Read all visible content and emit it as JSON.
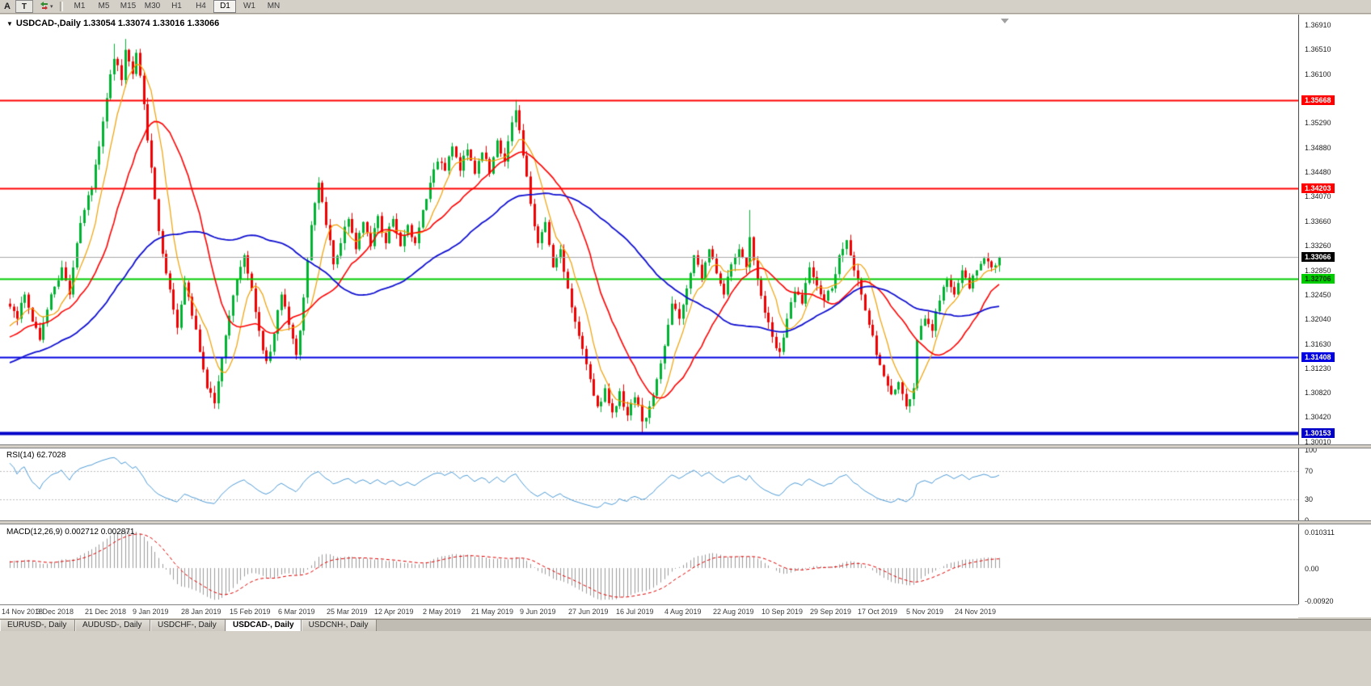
{
  "toolbar": {
    "pointer_label": "A",
    "text_tool_label": "T",
    "timeframes": [
      "M1",
      "M5",
      "M15",
      "M30",
      "H1",
      "H4",
      "D1",
      "W1",
      "MN"
    ],
    "active_timeframe": "D1"
  },
  "chart_data": {
    "type": "candlestick",
    "symbol": "USDCAD",
    "period": "Daily",
    "title_display": "USDCAD-,Daily 1.33054 1.33074 1.33016 1.33066",
    "ohlc": {
      "open": 1.33054,
      "high": 1.33074,
      "low": 1.33016,
      "close": 1.33066
    },
    "y_axis_ticks": [
      "1.36910",
      "1.36510",
      "1.36100",
      "1.35690",
      "1.35290",
      "1.34880",
      "1.34480",
      "1.34070",
      "1.33660",
      "1.33260",
      "1.32850",
      "1.32450",
      "1.32040",
      "1.31630",
      "1.31230",
      "1.30820",
      "1.30420",
      "1.30010"
    ],
    "x_labels": [
      "14 Nov 2018",
      "3 Dec 2018",
      "21 Dec 2018",
      "9 Jan 2019",
      "28 Jan 2019",
      "15 Feb 2019",
      "6 Mar 2019",
      "25 Mar 2019",
      "12 Apr 2019",
      "2 May 2019",
      "21 May 2019",
      "9 Jun 2019",
      "27 Jun 2019",
      "16 Jul 2019",
      "4 Aug 2019",
      "22 Aug 2019",
      "10 Sep 2019",
      "29 Sep 2019",
      "17 Oct 2019",
      "5 Nov 2019",
      "24 Nov 2019"
    ],
    "bars_per_label": 13,
    "total_bars": 267,
    "close_waypoints": [
      [
        0,
        1.3225
      ],
      [
        2,
        1.3205
      ],
      [
        4,
        1.3245
      ],
      [
        6,
        1.32
      ],
      [
        8,
        1.317
      ],
      [
        10,
        1.322
      ],
      [
        12,
        1.3258
      ],
      [
        14,
        1.329
      ],
      [
        16,
        1.3245
      ],
      [
        18,
        1.333
      ],
      [
        20,
        1.3385
      ],
      [
        22,
        1.342
      ],
      [
        24,
        1.349
      ],
      [
        26,
        1.357
      ],
      [
        28,
        1.3635
      ],
      [
        30,
        1.36
      ],
      [
        31,
        1.365
      ],
      [
        33,
        1.361
      ],
      [
        34,
        1.3645
      ],
      [
        36,
        1.356
      ],
      [
        38,
        1.3455
      ],
      [
        40,
        1.335
      ],
      [
        42,
        1.328
      ],
      [
        44,
        1.322
      ],
      [
        45,
        1.319
      ],
      [
        47,
        1.3265
      ],
      [
        49,
        1.321
      ],
      [
        51,
        1.315
      ],
      [
        53,
        1.309
      ],
      [
        55,
        1.3065
      ],
      [
        57,
        1.314
      ],
      [
        59,
        1.321
      ],
      [
        61,
        1.327
      ],
      [
        63,
        1.331
      ],
      [
        65,
        1.3255
      ],
      [
        67,
        1.3185
      ],
      [
        69,
        1.3135
      ],
      [
        71,
        1.318
      ],
      [
        73,
        1.3245
      ],
      [
        75,
        1.3195
      ],
      [
        77,
        1.3145
      ],
      [
        79,
        1.324
      ],
      [
        81,
        1.336
      ],
      [
        83,
        1.343
      ],
      [
        85,
        1.336
      ],
      [
        87,
        1.3295
      ],
      [
        89,
        1.333
      ],
      [
        91,
        1.337
      ],
      [
        93,
        1.332
      ],
      [
        95,
        1.3365
      ],
      [
        97,
        1.3325
      ],
      [
        99,
        1.3375
      ],
      [
        101,
        1.333
      ],
      [
        103,
        1.337
      ],
      [
        105,
        1.3325
      ],
      [
        107,
        1.336
      ],
      [
        109,
        1.333
      ],
      [
        111,
        1.3385
      ],
      [
        113,
        1.343
      ],
      [
        115,
        1.3465
      ],
      [
        117,
        1.345
      ],
      [
        119,
        1.349
      ],
      [
        121,
        1.345
      ],
      [
        123,
        1.3485
      ],
      [
        125,
        1.3445
      ],
      [
        127,
        1.348
      ],
      [
        129,
        1.3445
      ],
      [
        131,
        1.35
      ],
      [
        133,
        1.3465
      ],
      [
        135,
        1.353
      ],
      [
        136,
        1.355
      ],
      [
        138,
        1.3475
      ],
      [
        140,
        1.3395
      ],
      [
        142,
        1.333
      ],
      [
        144,
        1.3365
      ],
      [
        146,
        1.329
      ],
      [
        148,
        1.332
      ],
      [
        150,
        1.3255
      ],
      [
        152,
        1.32
      ],
      [
        154,
        1.3155
      ],
      [
        156,
        1.3105
      ],
      [
        158,
        1.306
      ],
      [
        160,
        1.309
      ],
      [
        162,
        1.305
      ],
      [
        164,
        1.3085
      ],
      [
        166,
        1.3045
      ],
      [
        168,
        1.3075
      ],
      [
        170,
        1.3035
      ],
      [
        172,
        1.306
      ],
      [
        174,
        1.3105
      ],
      [
        176,
        1.316
      ],
      [
        178,
        1.323
      ],
      [
        180,
        1.3205
      ],
      [
        182,
        1.3255
      ],
      [
        184,
        1.331
      ],
      [
        186,
        1.327
      ],
      [
        188,
        1.332
      ],
      [
        190,
        1.328
      ],
      [
        192,
        1.3245
      ],
      [
        194,
        1.3295
      ],
      [
        196,
        1.332
      ],
      [
        198,
        1.329
      ],
      [
        199,
        1.334
      ],
      [
        201,
        1.327
      ],
      [
        203,
        1.3215
      ],
      [
        205,
        1.3175
      ],
      [
        207,
        1.315
      ],
      [
        209,
        1.3205
      ],
      [
        211,
        1.325
      ],
      [
        213,
        1.323
      ],
      [
        215,
        1.329
      ],
      [
        217,
        1.326
      ],
      [
        219,
        1.3235
      ],
      [
        221,
        1.3255
      ],
      [
        223,
        1.331
      ],
      [
        225,
        1.3335
      ],
      [
        227,
        1.3285
      ],
      [
        229,
        1.3245
      ],
      [
        231,
        1.3195
      ],
      [
        233,
        1.3145
      ],
      [
        235,
        1.311
      ],
      [
        237,
        1.308
      ],
      [
        239,
        1.31
      ],
      [
        241,
        1.306
      ],
      [
        243,
        1.309
      ],
      [
        244,
        1.317
      ],
      [
        246,
        1.3205
      ],
      [
        248,
        1.3185
      ],
      [
        250,
        1.3235
      ],
      [
        252,
        1.327
      ],
      [
        254,
        1.3245
      ],
      [
        256,
        1.3285
      ],
      [
        258,
        1.3255
      ],
      [
        260,
        1.3285
      ],
      [
        262,
        1.3305
      ],
      [
        264,
        1.329
      ],
      [
        266,
        1.33066
      ]
    ],
    "wick_overrides": [
      {
        "i": 28,
        "high": 1.366
      },
      {
        "i": 31,
        "high": 1.3668
      },
      {
        "i": 136,
        "high": 1.3567
      },
      {
        "i": 170,
        "low": 1.3016
      },
      {
        "i": 199,
        "high": 1.3385
      },
      {
        "i": 207,
        "low": 1.3141
      }
    ],
    "colors": {
      "up": "#00B232",
      "down": "#F00000",
      "background": "#FFFFFF",
      "current_price_line": "#A8A8A8"
    },
    "horizontal_lines": [
      {
        "price": 1.35668,
        "label": "1.35668",
        "color": "#FF0000",
        "width": 2,
        "text_color": "#FFFFFF"
      },
      {
        "price": 1.34203,
        "label": "1.34203",
        "color": "#FF0000",
        "width": 2,
        "text_color": "#FFFFFF"
      },
      {
        "price": 1.32706,
        "label": "1.32706",
        "color": "#00CC00",
        "width": 2,
        "text_color": "#003300"
      },
      {
        "price": 1.31408,
        "label": "1.31408",
        "color": "#0000E0",
        "width": 2,
        "text_color": "#FFFFFF"
      },
      {
        "price": 1.30153,
        "label": "1.30153",
        "color": "#0000C8",
        "width": 4,
        "text_color": "#FFFFFF"
      }
    ],
    "current_price": {
      "value": 1.33066,
      "label": "1.33066",
      "box_color": "#000000",
      "text_color": "#FFFFFF"
    },
    "moving_averages": [
      {
        "period": 8,
        "color": "#F0A000",
        "width": 1.2
      },
      {
        "period": 21,
        "color": "#FF0000",
        "width": 1.6
      },
      {
        "period": 55,
        "color": "#1010D0",
        "width": 1.8
      }
    ],
    "indicators": {
      "rsi": {
        "label": "RSI(14) 62.7028",
        "period": 14,
        "value": 62.7028,
        "axis_labels": [
          "100",
          "70",
          "30",
          "0"
        ],
        "levels": [
          70,
          30
        ],
        "color": "#4E9BD4"
      },
      "macd": {
        "label": "MACD(12,26,9) 0.002712 0.002871",
        "fast": 12,
        "slow": 26,
        "signal": 9,
        "macd_value": 0.002712,
        "signal_value": 0.002871,
        "axis_labels": [
          "0.010311",
          "0.00",
          "-0.00920"
        ],
        "axis_max": 0.010311,
        "axis_min": -0.0092,
        "histogram_color": "#9B9B9B",
        "signal_color": "#E00000"
      }
    }
  },
  "tabs": {
    "items": [
      "EURUSD-, Daily",
      "AUDUSD-, Daily",
      "USDCHF-, Daily",
      "USDCAD-, Daily",
      "USDCNH-, Daily"
    ],
    "active": "USDCAD-, Daily"
  }
}
